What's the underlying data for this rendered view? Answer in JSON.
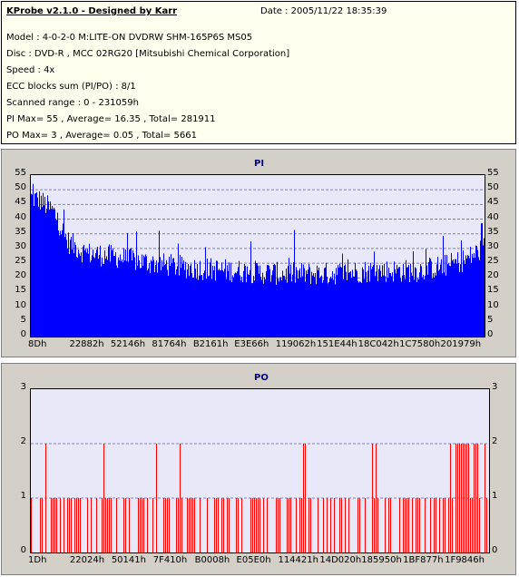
{
  "header": {
    "title": "KProbe v2.1.0 - Designed by Karr",
    "date": "Date : 2005/11/22 18:35:39",
    "lines": [
      "Model : 4-0-2-0 M:LITE-ON DVDRW SHM-165P6S MS05",
      "Disc : DVD-R , MCC 02RG20   [Mitsubishi Chemical Corporation]",
      "Speed : 4x",
      "ECC blocks sum (PI/PO) : 8/1",
      "Scanned range : 0 - 231059h",
      "PI Max= 55 , Average= 16.35 , Total= 281911",
      "PO Max= 3 , Average= 0.05 , Total= 5661"
    ]
  },
  "colors": {
    "pi": "#0000ff",
    "po": "#ff0000",
    "plot_bg": "#e8e8f8",
    "panel_bg": "#d4d0c8",
    "info_bg": "#fffff0",
    "grid": "#8080c0"
  },
  "chart_data": [
    {
      "type": "area",
      "title": "PI",
      "ylim": [
        0,
        55
      ],
      "yticks": [
        "0",
        "5",
        "10",
        "15",
        "20",
        "25",
        "30",
        "35",
        "40",
        "45",
        "50",
        "55"
      ],
      "xticks": [
        "8Dh",
        "22882h",
        "52146h",
        "81764h",
        "B2161h",
        "E3E66h",
        "119062h",
        "151E44h",
        "18C042h",
        "1C7580h",
        "201979h"
      ],
      "profile": {
        "x": [
          0,
          0.02,
          0.05,
          0.08,
          0.12,
          0.18,
          0.25,
          0.35,
          0.45,
          0.55,
          0.65,
          0.75,
          0.85,
          0.92,
          0.96,
          1.0
        ],
        "y": [
          47,
          46,
          42,
          32,
          28,
          27,
          25,
          23,
          22,
          21,
          21,
          22,
          22,
          24,
          26,
          30
        ]
      },
      "grid": true
    },
    {
      "type": "bar",
      "title": "PO",
      "ylim": [
        0,
        3
      ],
      "yticks": [
        "0",
        "1",
        "2",
        "3"
      ],
      "xticks": [
        "1Dh",
        "22024h",
        "50141h",
        "7F410h",
        "B0008h",
        "E05E0h",
        "114421h",
        "14D020h",
        "185950h",
        "1BF877h",
        "1F9846h"
      ],
      "grid": true
    }
  ]
}
